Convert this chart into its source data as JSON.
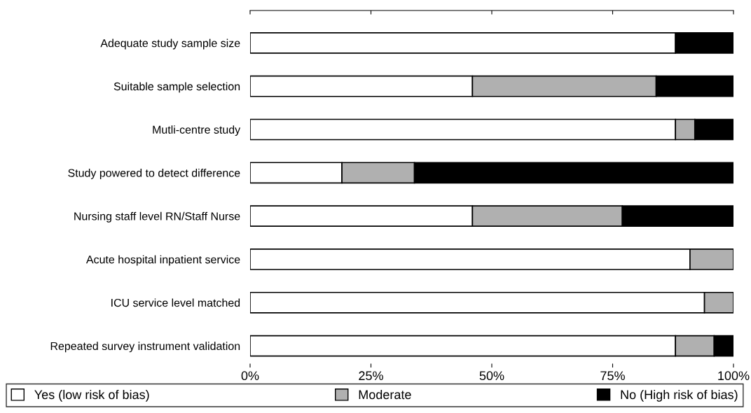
{
  "chart_data": {
    "type": "bar",
    "orientation": "horizontal",
    "stacked": true,
    "categories": [
      "Adequate study sample size",
      "Suitable sample selection",
      "Mutli-centre study",
      "Study powered to detect difference",
      "Nursing staff level RN/Staff Nurse",
      "Acute hospital inpatient service",
      "ICU service level matched",
      "Repeated survey instrument validation"
    ],
    "series": [
      {
        "name": "Yes (low risk of bias)",
        "color": "#ffffff",
        "values": [
          88,
          46,
          88,
          19,
          46,
          91,
          94,
          88
        ]
      },
      {
        "name": "Moderate",
        "color": "#b0b0b0",
        "values": [
          0,
          38,
          4,
          15,
          31,
          9,
          6,
          8
        ]
      },
      {
        "name": "No (High risk of bias)",
        "color": "#000000",
        "values": [
          12,
          16,
          8,
          66,
          23,
          0,
          0,
          4
        ]
      }
    ],
    "xlim": [
      0,
      100
    ],
    "xticks": [
      {
        "value": 0,
        "label": "0%"
      },
      {
        "value": 25,
        "label": "25%"
      },
      {
        "value": 50,
        "label": "50%"
      },
      {
        "value": 75,
        "label": "75%"
      },
      {
        "value": 100,
        "label": "100%"
      }
    ],
    "legend": "bottom",
    "grid": false
  }
}
